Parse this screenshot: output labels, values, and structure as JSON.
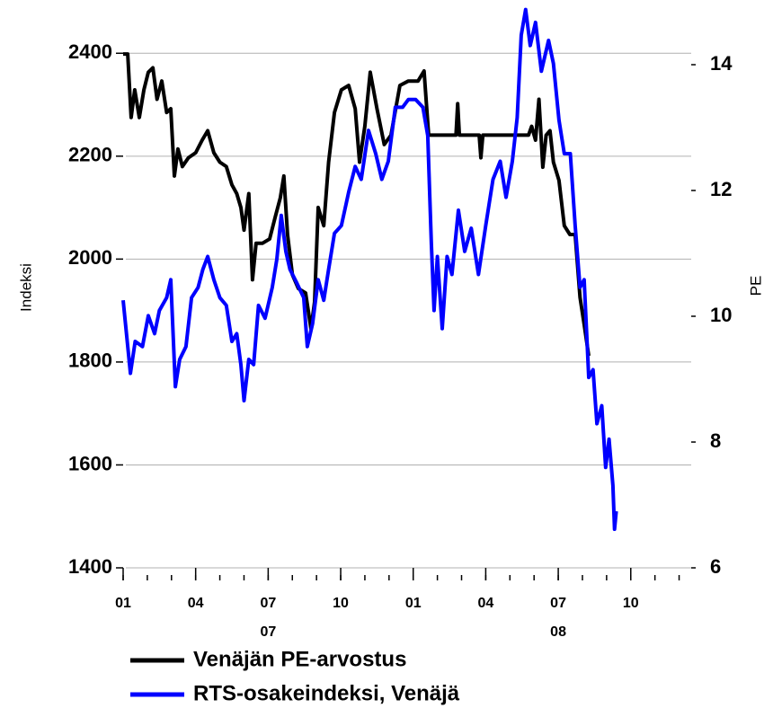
{
  "chart_data": {
    "type": "line",
    "y_label": "Indeksi",
    "y2_label": "PE",
    "xlim": [
      0,
      23.5
    ],
    "xticks": [
      {
        "value": 0,
        "label": "01"
      },
      {
        "value": 3,
        "label": "04"
      },
      {
        "value": 6,
        "label": "07"
      },
      {
        "value": 9,
        "label": "10"
      },
      {
        "value": 12,
        "label": "01"
      },
      {
        "value": 15,
        "label": "04"
      },
      {
        "value": 18,
        "label": "07"
      },
      {
        "value": 21,
        "label": "10"
      }
    ],
    "xminor_ticks": [
      0,
      1,
      2,
      3,
      4,
      5,
      6,
      7,
      8,
      9,
      10,
      11,
      12,
      13,
      14,
      15,
      16,
      17,
      18,
      19,
      20,
      21,
      22,
      23
    ],
    "year_labels": [
      {
        "value": 6,
        "label": "07"
      },
      {
        "value": 18,
        "label": "08"
      }
    ],
    "ylim": [
      1400,
      2500
    ],
    "yticks": [
      1400,
      1600,
      1800,
      2000,
      2200,
      2400
    ],
    "y2lim": [
      6,
      15
    ],
    "y2ticks": [
      6,
      8,
      10,
      12,
      14
    ],
    "grid": true,
    "series": [
      {
        "name": "Venäjän PE-arvostus",
        "color": "#000000",
        "axis": "y2",
        "x": [
          0,
          0.19,
          0.33,
          0.48,
          0.67,
          0.86,
          1.04,
          1.23,
          1.4,
          1.6,
          1.8,
          1.97,
          2.12,
          2.27,
          2.45,
          2.7,
          3.0,
          3.27,
          3.5,
          3.75,
          4.0,
          4.27,
          4.5,
          4.7,
          4.87,
          5.0,
          5.2,
          5.35,
          5.5,
          5.76,
          6.06,
          6.3,
          6.5,
          6.65,
          6.8,
          7.0,
          7.25,
          7.55,
          7.77,
          7.92,
          8.07,
          8.3,
          8.5,
          8.74,
          9.03,
          9.33,
          9.6,
          9.78,
          10.0,
          10.22,
          10.5,
          10.8,
          11.08,
          11.45,
          11.8,
          12.2,
          12.45,
          12.64,
          13.1,
          13.77,
          13.84,
          13.91,
          14.73,
          14.8,
          14.88,
          16.77,
          16.9,
          17.06,
          17.2,
          17.36,
          17.5,
          17.66,
          17.8,
          18.03,
          18.25,
          18.48,
          18.7,
          18.9,
          19.07,
          19.26
        ],
        "values": [
          14.17,
          14.17,
          13.16,
          13.6,
          13.16,
          13.6,
          13.88,
          13.95,
          13.45,
          13.74,
          13.24,
          13.3,
          12.23,
          12.66,
          12.38,
          12.52,
          12.6,
          12.8,
          12.95,
          12.6,
          12.45,
          12.38,
          12.09,
          11.95,
          11.73,
          11.37,
          11.95,
          10.58,
          11.16,
          11.16,
          11.23,
          11.59,
          11.88,
          12.23,
          11.3,
          10.66,
          10.44,
          10.37,
          9.8,
          10.23,
          11.73,
          11.44,
          12.45,
          13.24,
          13.6,
          13.67,
          13.3,
          12.45,
          13.02,
          13.88,
          13.3,
          12.73,
          12.88,
          13.67,
          13.74,
          13.74,
          13.9,
          12.88,
          12.88,
          12.88,
          13.38,
          12.88,
          12.88,
          12.52,
          12.88,
          12.88,
          13.02,
          12.8,
          13.45,
          12.37,
          12.88,
          12.95,
          12.45,
          12.16,
          11.44,
          11.3,
          11.3,
          10.3,
          9.87,
          9.37
        ]
      },
      {
        "name": "RTS-osakeindeksi, Venäjä",
        "color": "#0000ff",
        "x": [
          0,
          0.3,
          0.5,
          0.8,
          1.04,
          1.3,
          1.5,
          1.8,
          1.97,
          2.16,
          2.34,
          2.6,
          2.83,
          3.1,
          3.3,
          3.5,
          3.75,
          4.0,
          4.27,
          4.5,
          4.7,
          4.87,
          5.0,
          5.2,
          5.4,
          5.6,
          5.87,
          6.17,
          6.36,
          6.54,
          6.73,
          6.9,
          7.17,
          7.47,
          7.62,
          7.84,
          8.07,
          8.3,
          8.5,
          8.74,
          9.03,
          9.33,
          9.6,
          9.85,
          10.15,
          10.45,
          10.7,
          10.97,
          11.26,
          11.56,
          11.8,
          12.1,
          12.4,
          12.6,
          12.75,
          12.86,
          13.0,
          13.2,
          13.4,
          13.6,
          13.87,
          14.13,
          14.4,
          14.7,
          15.0,
          15.3,
          15.6,
          15.84,
          16.1,
          16.3,
          16.47,
          16.65,
          16.84,
          17.06,
          17.3,
          17.6,
          17.8,
          18.03,
          18.25,
          18.5,
          18.7,
          18.9,
          19.07,
          19.26,
          19.44,
          19.6,
          19.8,
          19.96,
          20.1,
          20.26,
          20.33,
          20.4
        ],
        "values": [
          1920,
          1778,
          1840,
          1830,
          1890,
          1855,
          1900,
          1925,
          1960,
          1752,
          1805,
          1830,
          1925,
          1945,
          1980,
          2005,
          1960,
          1925,
          1910,
          1840,
          1855,
          1795,
          1725,
          1805,
          1795,
          1910,
          1885,
          1945,
          2000,
          2085,
          2015,
          1980,
          1955,
          1925,
          1830,
          1875,
          1960,
          1920,
          1980,
          2050,
          2065,
          2130,
          2180,
          2155,
          2250,
          2205,
          2155,
          2190,
          2295,
          2295,
          2310,
          2310,
          2295,
          2240,
          2030,
          1900,
          2005,
          1865,
          2005,
          1970,
          2095,
          2015,
          2060,
          1970,
          2065,
          2155,
          2190,
          2120,
          2190,
          2275,
          2435,
          2485,
          2415,
          2460,
          2365,
          2425,
          2380,
          2270,
          2205,
          2205,
          2065,
          1945,
          1960,
          1770,
          1785,
          1680,
          1715,
          1595,
          1650,
          1560,
          1475,
          1510
        ]
      }
    ]
  }
}
